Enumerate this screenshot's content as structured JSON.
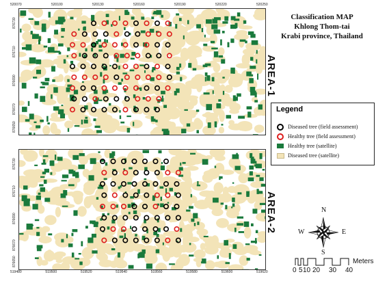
{
  "title": [
    "Classification MAP",
    "Khlong Thom-tai",
    "Krabi province, Thailand"
  ],
  "areas": [
    {
      "label": "AREA-1",
      "x_ticks": [
        "520070",
        "520100",
        "520130",
        "520160",
        "520190",
        "520220",
        "520250"
      ],
      "y_ticks": [
        "876730",
        "876710",
        "876690",
        "876670",
        "876650"
      ]
    },
    {
      "label": "AREA-2",
      "x_ticks": [
        "519480",
        "519500",
        "519520",
        "519540",
        "519560",
        "519580",
        "519600",
        "519620"
      ],
      "y_ticks": [
        "876730",
        "876710",
        "876690",
        "876670",
        "876650"
      ]
    }
  ],
  "legend": {
    "title": "Legend",
    "items": [
      {
        "label": "Diseased tree (field assessment)",
        "symbol": "ring",
        "color": "#000000"
      },
      {
        "label": "Healthy tree (field assessment)",
        "symbol": "ring",
        "color": "#dd1c1c"
      },
      {
        "label": "Healthy tree (satellite)",
        "symbol": "square",
        "color": "#1a7a3c"
      },
      {
        "label": "Diseased tree (satellite)",
        "symbol": "square",
        "color": "#f3e4b8"
      }
    ]
  },
  "compass": {
    "n": "N",
    "s": "S",
    "e": "E",
    "w": "W"
  },
  "scale": {
    "labels": [
      "0",
      "5",
      "10",
      "20",
      "30",
      "40"
    ],
    "unit": "Meters"
  },
  "colors": {
    "healthy_sat": "#1a7a3c",
    "diseased_sat": "#f3e4b8",
    "diseased_field": "#000000",
    "healthy_field": "#dd1c1c"
  }
}
